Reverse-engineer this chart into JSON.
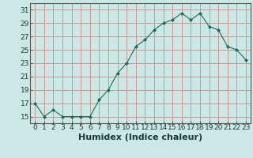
{
  "x": [
    0,
    1,
    2,
    3,
    4,
    5,
    6,
    7,
    8,
    9,
    10,
    11,
    12,
    13,
    14,
    15,
    16,
    17,
    18,
    19,
    20,
    21,
    22,
    23
  ],
  "y": [
    17,
    15,
    16,
    15,
    15,
    15,
    15,
    17.5,
    19,
    21.5,
    23,
    25.5,
    26.5,
    28,
    29,
    29.5,
    30.5,
    29.5,
    30.5,
    28.5,
    28,
    25.5,
    25,
    23.5
  ],
  "xlabel": "Humidex (Indice chaleur)",
  "ylim": [
    14,
    32
  ],
  "yticks": [
    15,
    17,
    19,
    21,
    23,
    25,
    27,
    29,
    31
  ],
  "ytick_labels": [
    "15",
    "17",
    "19",
    "21",
    "23",
    "25",
    "27",
    "29",
    "31"
  ],
  "xlim": [
    -0.5,
    23.5
  ],
  "bg_color": "#cce8e4",
  "grid_color": "#cc8888",
  "line_color": "#1a6b5a",
  "marker_color": "#1a6b5a",
  "tick_label_fontsize": 6.5,
  "xlabel_fontsize": 8.0
}
